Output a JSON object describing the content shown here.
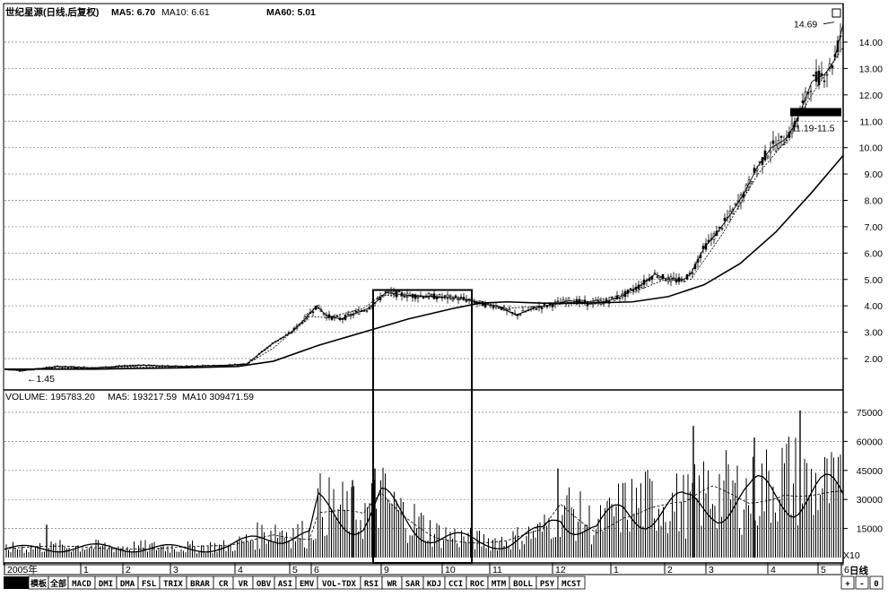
{
  "chart_data": [
    {
      "type": "line",
      "title": "世纪星源(日线,后复权)",
      "indicators": [
        {
          "name": "MA5",
          "value": "6.70"
        },
        {
          "name": "MA10",
          "value": "6.61"
        },
        {
          "name": "MA60",
          "value": "5.01"
        }
      ],
      "x_months": [
        "2005年",
        "1",
        "2",
        "3",
        "4",
        "5",
        "6",
        "9",
        "10",
        "11",
        "12",
        "1",
        "2",
        "3",
        "4",
        "5",
        "6"
      ],
      "x_month_pos": [
        0,
        85,
        132,
        185,
        257,
        318,
        342,
        420,
        488,
        541,
        611,
        676,
        736,
        782,
        851,
        907,
        933
      ],
      "ylim": [
        1.0,
        15.0
      ],
      "y_ticks": [
        "14.00",
        "13.00",
        "12.00",
        "11.00",
        "10.00",
        "9.00",
        "8.00",
        "7.00",
        "6.00",
        "5.00",
        "4.00",
        "3.00",
        "2.00"
      ],
      "y_tick_values": [
        14,
        13,
        12,
        11,
        10,
        9,
        8,
        7,
        6,
        5,
        4,
        3,
        2
      ],
      "price_line": {
        "x": [
          0,
          20,
          60,
          100,
          150,
          200,
          250,
          270,
          285,
          300,
          320,
          335,
          348,
          360,
          375,
          390,
          405,
          416,
          425,
          450,
          480,
          505,
          520,
          535,
          550,
          570,
          590,
          610,
          630,
          650,
          670,
          690,
          710,
          725,
          740,
          755,
          765,
          780,
          795,
          810,
          825,
          840,
          855,
          870,
          880,
          890,
          900,
          915,
          925,
          935
        ],
        "y": [
          1.6,
          1.55,
          1.7,
          1.65,
          1.75,
          1.7,
          1.75,
          1.8,
          2.2,
          2.6,
          3.0,
          3.5,
          4.0,
          3.6,
          3.5,
          3.7,
          3.9,
          4.2,
          4.5,
          4.4,
          4.35,
          4.3,
          4.2,
          4.05,
          4.0,
          3.65,
          3.9,
          4.05,
          4.2,
          4.1,
          4.15,
          4.4,
          4.8,
          5.2,
          5.0,
          4.95,
          5.2,
          6.2,
          6.8,
          7.5,
          8.3,
          9.3,
          10.0,
          10.3,
          10.8,
          11.6,
          12.5,
          12.8,
          13.3,
          14.69
        ]
      },
      "ma5_line": {
        "x": [
          0,
          100,
          200,
          270,
          300,
          340,
          360,
          400,
          420,
          470,
          520,
          560,
          600,
          650,
          700,
          740,
          765,
          800,
          840,
          870,
          900,
          935
        ],
        "y": [
          1.6,
          1.65,
          1.7,
          1.78,
          2.4,
          3.6,
          3.55,
          3.9,
          4.4,
          4.35,
          4.2,
          3.9,
          4.0,
          4.15,
          4.5,
          5.05,
          5.0,
          6.7,
          9.0,
          10.2,
          12.0,
          13.8
        ]
      },
      "ma60_line": {
        "x": [
          0,
          100,
          200,
          260,
          300,
          350,
          400,
          450,
          500,
          530,
          560,
          600,
          650,
          700,
          740,
          780,
          820,
          860,
          900,
          935
        ],
        "y": [
          1.6,
          1.6,
          1.65,
          1.7,
          1.9,
          2.5,
          3.0,
          3.5,
          3.9,
          4.1,
          4.15,
          4.1,
          4.1,
          4.15,
          4.35,
          4.8,
          5.6,
          6.8,
          8.3,
          9.7
        ]
      },
      "annotations": [
        {
          "text": "14.69",
          "x": 900,
          "y": 14.69
        },
        {
          "text": "11.19-11.5",
          "x": 880,
          "y": 11.3
        },
        {
          "text": "←1.45",
          "x": 25,
          "y": 1.45
        }
      ],
      "highlight_box": {
        "x": [
          416,
          526
        ],
        "y": [
          4.6,
          1.0
        ]
      },
      "price_band": {
        "x": [
          881,
          938
        ],
        "y": [
          11.19,
          11.5
        ]
      }
    },
    {
      "type": "bar",
      "title": "VOLUME",
      "indicators": [
        {
          "name": "VOLUME",
          "value": "195783.20"
        },
        {
          "name": "MA5",
          "value": "193217.59"
        },
        {
          "name": "MA10",
          "value": "309471.59"
        }
      ],
      "unit_label": "X10",
      "ylim": [
        0,
        80000
      ],
      "y_ticks": [
        "75000",
        "60000",
        "45000",
        "30000",
        "15000"
      ],
      "y_tick_values": [
        75000,
        60000,
        45000,
        30000,
        15000
      ],
      "volume_profile": {
        "x": [
          0,
          80,
          200,
          250,
          270,
          300,
          340,
          350,
          380,
          400,
          420,
          440,
          480,
          530,
          560,
          600,
          620,
          660,
          690,
          720,
          760,
          790,
          830,
          870,
          900,
          935
        ],
        "y": [
          5000,
          6000,
          5500,
          6000,
          9000,
          15000,
          12000,
          28000,
          25000,
          22000,
          32000,
          24000,
          13000,
          9000,
          9000,
          14000,
          28000,
          16000,
          27000,
          30000,
          28000,
          36000,
          33000,
          43000,
          38000,
          34000
        ]
      },
      "spikes": [
        {
          "x": 47,
          "y": 17000
        },
        {
          "x": 388,
          "y": 40000
        },
        {
          "x": 413,
          "y": 46000
        },
        {
          "x": 617,
          "y": 46000
        },
        {
          "x": 768,
          "y": 68000
        },
        {
          "x": 836,
          "y": 62000
        },
        {
          "x": 887,
          "y": 76000
        }
      ]
    }
  ],
  "bottom_axis": {
    "period_label": "日线"
  },
  "tabs": [
    "模板",
    "全部",
    "MACD",
    "DMI",
    "DMA",
    "FSL",
    "TRIX",
    "BRAR",
    "CR",
    "VR",
    "OBV",
    "ASI",
    "EMV",
    "VOL-TDX",
    "RSI",
    "WR",
    "SAR",
    "KDJ",
    "CCI",
    "ROC",
    "MTM",
    "BOLL",
    "PSY",
    "MCST"
  ],
  "tab_controls": [
    "+",
    "-",
    "0"
  ]
}
